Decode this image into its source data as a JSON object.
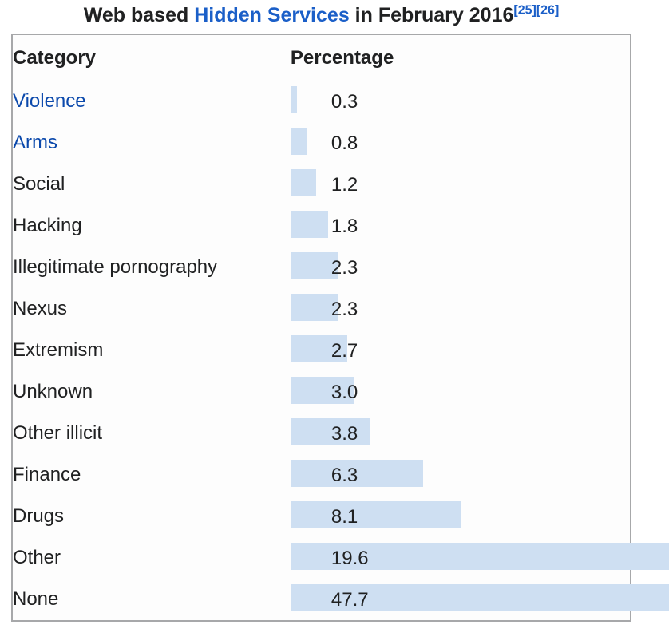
{
  "title": {
    "prefix": "Web based ",
    "link_text": "Hidden Services",
    "suffix": " in February 2016",
    "refs": [
      "[25]",
      "[26]"
    ]
  },
  "table": {
    "columns": [
      "Category",
      "Percentage"
    ]
  },
  "chart_data": {
    "type": "bar",
    "orientation": "horizontal",
    "title": "Web based Hidden Services in February 2016",
    "categories": [
      "Violence",
      "Arms",
      "Social",
      "Hacking",
      "Illegitimate pornography",
      "Nexus",
      "Extremism",
      "Unknown",
      "Other illicit",
      "Finance",
      "Drugs",
      "Other",
      "None"
    ],
    "values": [
      0.3,
      0.8,
      1.2,
      1.8,
      2.3,
      2.3,
      2.7,
      3.0,
      3.8,
      6.3,
      8.1,
      19.6,
      47.7
    ],
    "unit": "percent",
    "linked_categories": [
      "Violence",
      "Arms"
    ],
    "value_labels": [
      "0.3",
      "0.8",
      "1.2",
      "1.8",
      "2.3",
      "2.3",
      "2.7",
      "3.0",
      "3.8",
      "6.3",
      "8.1",
      "19.6",
      "47.7"
    ],
    "bars_clipped_at_right_edge": [
      "Other",
      "None"
    ]
  },
  "colors": {
    "text": "#202122",
    "link-bright": "#1b5fc8",
    "link": "#0b49ac",
    "bar": "#cedff2",
    "border": "#a7a8aa",
    "table-bg": "#fdfdfd",
    "page-bg": "#ffffff"
  }
}
